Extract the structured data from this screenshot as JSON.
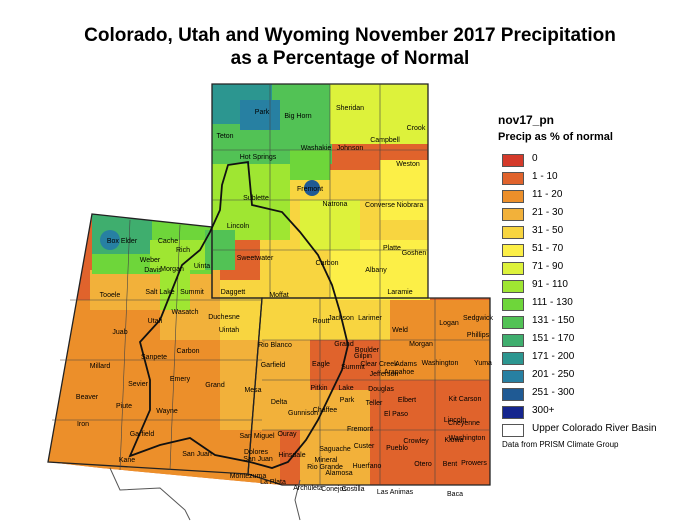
{
  "title": {
    "line1": "Colorado, Utah and Wyoming November 2017 Precipitation",
    "line2": "as a Percentage of Normal"
  },
  "legend": {
    "layer": "nov17_pn",
    "subtitle": "Precip as % of normal",
    "items": [
      {
        "label": "0",
        "color": "#d43a2a"
      },
      {
        "label": "1 - 10",
        "color": "#e0632c"
      },
      {
        "label": "11 - 20",
        "color": "#ec8f2a"
      },
      {
        "label": "21 - 30",
        "color": "#f2b13a"
      },
      {
        "label": "31 - 50",
        "color": "#f8d540"
      },
      {
        "label": "51 - 70",
        "color": "#fcef47"
      },
      {
        "label": "71 - 90",
        "color": "#ddf23b"
      },
      {
        "label": "91 - 110",
        "color": "#9fe632"
      },
      {
        "label": "111 - 130",
        "color": "#6ed63a"
      },
      {
        "label": "131 - 150",
        "color": "#52c255"
      },
      {
        "label": "151 - 170",
        "color": "#3fae6e"
      },
      {
        "label": "171 - 200",
        "color": "#2c9690"
      },
      {
        "label": "201 - 250",
        "color": "#2780a2"
      },
      {
        "label": "251 - 300",
        "color": "#1f5a94"
      },
      {
        "label": "300+",
        "color": "#15258e"
      }
    ],
    "basin_label": "Upper Colorado River Basin"
  },
  "credit": "Data from PRISM Climate Group",
  "counties": [
    "Park",
    "Big Horn",
    "Sheridan",
    "Crook",
    "Teton",
    "Washakie",
    "Johnson",
    "Campbell",
    "Hot Springs",
    "Weston",
    "Fremont",
    "Sublette",
    "Natrona",
    "Converse",
    "Niobrara",
    "Lincoln",
    "Platte",
    "Goshen",
    "Box Elder",
    "Cache",
    "Rich",
    "Weber",
    "Davis",
    "Morgan",
    "Uinta",
    "Sweetwater",
    "Carbon",
    "Albany",
    "Laramie",
    "Tooele",
    "Salt Lake",
    "Summit",
    "Daggett",
    "Utah",
    "Wasatch",
    "Duchesne",
    "Juab",
    "Uintah",
    "Moffat",
    "Routt",
    "Jackson",
    "Larimer",
    "Weld",
    "Logan",
    "Sedgwick",
    "Phillips",
    "Rio Blanco",
    "Grand",
    "Boulder",
    "Morgan",
    "Millard",
    "Sanpete",
    "Carbon",
    "Garfield",
    "Eagle",
    "Summit",
    "Gilpin",
    "Clear Creek",
    "Adams",
    "Washington",
    "Yuma",
    "Jefferson",
    "Arapahoe",
    "Sevier",
    "Emery",
    "Grand",
    "Mesa",
    "Pitkin",
    "Lake",
    "Douglas",
    "Elbert",
    "Kit Carson",
    "Delta",
    "Park",
    "Beaver",
    "Piute",
    "Wayne",
    "Chaffee",
    "Teller",
    "El Paso",
    "Lincoln",
    "Cheyenne",
    "Gunnison",
    "Fremont",
    "Iron",
    "Garfield",
    "San Miguel",
    "Ouray",
    "Saguache",
    "Custer",
    "Pueblo",
    "Crowley",
    "Kiowa",
    "Washington",
    "Kane",
    "San Juan",
    "Dolores",
    "San Juan",
    "Hinsdale",
    "Mineral",
    "Rio Grande",
    "Alamosa",
    "Huerfano",
    "Otero",
    "Bent",
    "Prowers",
    "Montezuma",
    "La Plata",
    "Archuleta",
    "Conejos",
    "Costilla",
    "Las Animas",
    "Baca"
  ]
}
